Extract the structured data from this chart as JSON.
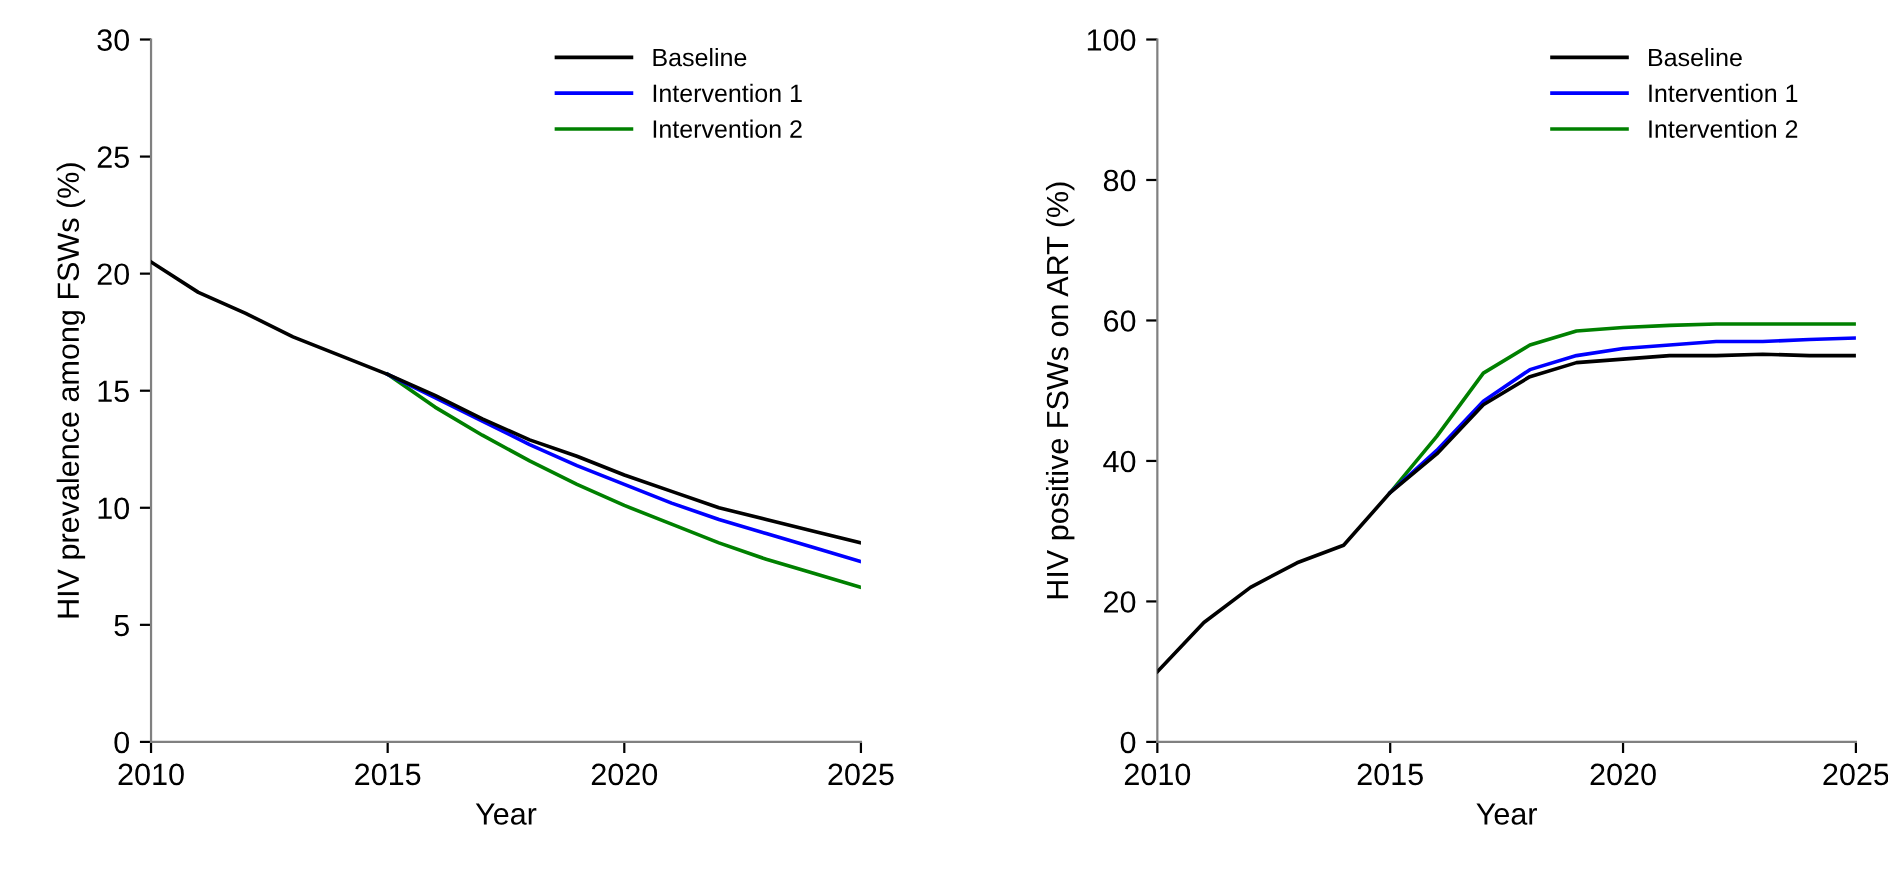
{
  "chart_data": [
    {
      "type": "line",
      "xlabel": "Year",
      "ylabel": "HIV prevalence among FSWs (%)",
      "x": [
        2010,
        2011,
        2012,
        2013,
        2014,
        2015,
        2016,
        2017,
        2018,
        2019,
        2020,
        2021,
        2022,
        2023,
        2024,
        2025
      ],
      "series": [
        {
          "name": "Baseline",
          "color": "#000000",
          "values": [
            20.5,
            19.2,
            18.3,
            17.3,
            16.5,
            15.7,
            14.8,
            13.8,
            12.9,
            12.2,
            11.4,
            10.7,
            10.0,
            9.5,
            9.0,
            8.5
          ]
        },
        {
          "name": "Intervention 1",
          "color": "#0000ff",
          "values": [
            null,
            null,
            null,
            null,
            null,
            15.7,
            14.7,
            13.7,
            12.7,
            11.8,
            11.0,
            10.2,
            9.5,
            8.9,
            8.3,
            7.7
          ]
        },
        {
          "name": "Intervention 2",
          "color": "#008000",
          "values": [
            null,
            null,
            null,
            null,
            null,
            15.7,
            14.3,
            13.1,
            12.0,
            11.0,
            10.1,
            9.3,
            8.5,
            7.8,
            7.2,
            6.6
          ]
        }
      ],
      "xlim": [
        2010,
        2025
      ],
      "xticks": [
        2010,
        2015,
        2020,
        2025
      ],
      "ylim": [
        0,
        30
      ],
      "yticks": [
        0,
        5,
        10,
        15,
        20,
        25,
        30
      ],
      "grid": false,
      "legend": "top right",
      "marker": "none",
      "line_style": "solid"
    },
    {
      "type": "line",
      "xlabel": "Year",
      "ylabel": "HIV positive FSWs on ART (%)",
      "x": [
        2010,
        2011,
        2012,
        2013,
        2014,
        2015,
        2016,
        2017,
        2018,
        2019,
        2020,
        2021,
        2022,
        2023,
        2024,
        2025
      ],
      "series": [
        {
          "name": "Baseline",
          "color": "#000000",
          "values": [
            10,
            17,
            22,
            25.5,
            28,
            35.5,
            41,
            48,
            52,
            54,
            54.5,
            55,
            55,
            55.2,
            55,
            55
          ]
        },
        {
          "name": "Intervention 1",
          "color": "#0000ff",
          "values": [
            null,
            null,
            null,
            null,
            null,
            35.5,
            41.5,
            48.5,
            53,
            55,
            56,
            56.5,
            57,
            57,
            57.3,
            57.5
          ]
        },
        {
          "name": "Intervention 2",
          "color": "#008000",
          "values": [
            null,
            null,
            null,
            null,
            null,
            35.5,
            43.5,
            52.5,
            56.5,
            58.5,
            59,
            59.3,
            59.5,
            59.5,
            59.5,
            59.5
          ]
        }
      ],
      "xlim": [
        2010,
        2025
      ],
      "xticks": [
        2010,
        2015,
        2020,
        2025
      ],
      "ylim": [
        0,
        100
      ],
      "yticks": [
        0,
        20,
        40,
        60,
        80,
        100
      ],
      "grid": false,
      "legend": "top right",
      "marker": "none",
      "line_style": "solid"
    }
  ]
}
